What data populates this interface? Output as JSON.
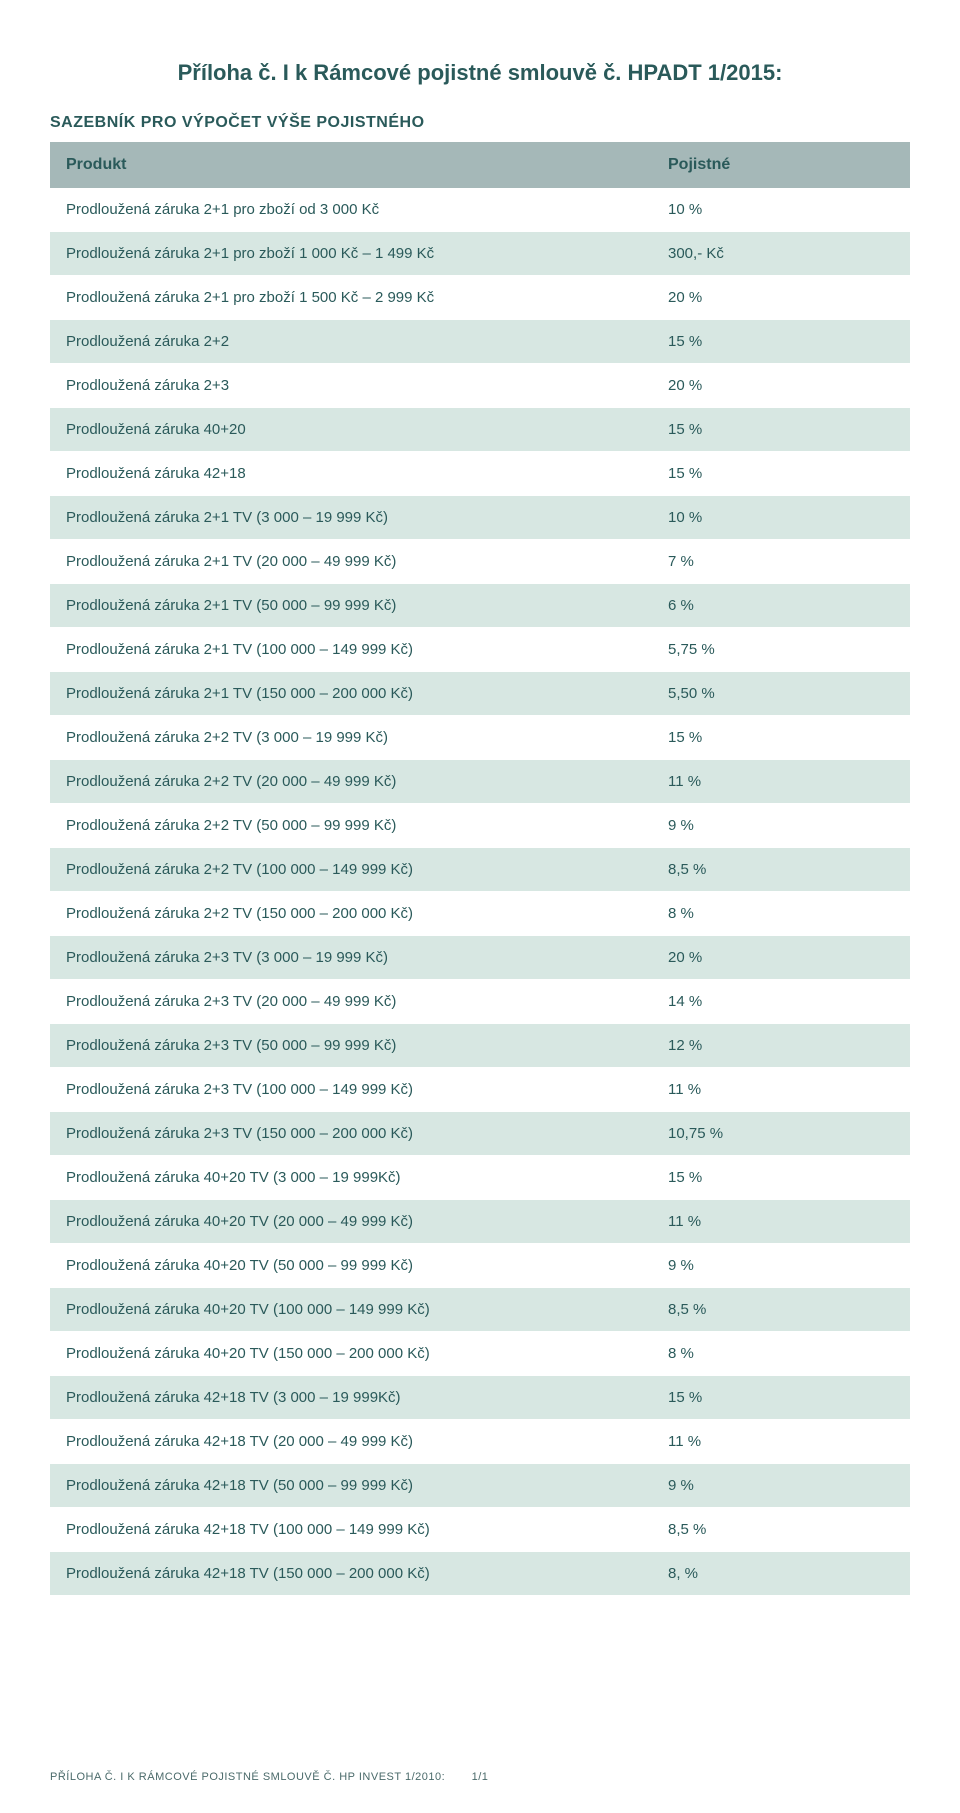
{
  "title": "Příloha č. I k Rámcové pojistné smlouvě č. HPADT 1/2015:",
  "subtitle": "SAZEBNÍK PRO VÝPOČET VÝŠE POJISTNÉHO",
  "columns": {
    "product": "Produkt",
    "value": "Pojistné"
  },
  "colors": {
    "header_bg": "#a5b8b8",
    "row_tint": "#d7e7e2",
    "row_white": "#ffffff",
    "text": "#2a5a5a"
  },
  "rows": [
    {
      "product": "Prodloužená záruka 2+1 pro zboží od 3 000 Kč",
      "value": "10 %"
    },
    {
      "product": "Prodloužená záruka 2+1 pro zboží 1 000 Kč – 1 499 Kč",
      "value": "300,- Kč"
    },
    {
      "product": "Prodloužená záruka 2+1 pro zboží 1 500 Kč – 2 999 Kč",
      "value": "20 %"
    },
    {
      "product": "Prodloužená záruka 2+2",
      "value": "15 %"
    },
    {
      "product": "Prodloužená záruka 2+3",
      "value": "20 %"
    },
    {
      "product": "Prodloužená záruka 40+20",
      "value": "15 %"
    },
    {
      "product": "Prodloužená záruka 42+18",
      "value": "15 %"
    },
    {
      "product": "Prodloužená záruka 2+1 TV (3 000 – 19 999 Kč)",
      "value": "10 %"
    },
    {
      "product": "Prodloužená záruka 2+1 TV (20 000 – 49 999 Kč)",
      "value": "7 %"
    },
    {
      "product": "Prodloužená záruka 2+1 TV (50 000 – 99 999 Kč)",
      "value": "6 %"
    },
    {
      "product": "Prodloužená záruka 2+1 TV (100 000 – 149 999 Kč)",
      "value": "5,75 %"
    },
    {
      "product": "Prodloužená záruka 2+1 TV (150 000 – 200 000 Kč)",
      "value": "5,50 %"
    },
    {
      "product": "Prodloužená záruka 2+2 TV (3 000 – 19 999 Kč)",
      "value": "15 %"
    },
    {
      "product": "Prodloužená záruka 2+2 TV (20 000 – 49 999 Kč)",
      "value": "11 %"
    },
    {
      "product": "Prodloužená záruka 2+2 TV (50 000 –  99 999 Kč)",
      "value": "9 %"
    },
    {
      "product": "Prodloužená záruka 2+2 TV (100 000 –  149 999 Kč)",
      "value": "8,5 %"
    },
    {
      "product": "Prodloužená záruka 2+2 TV (150 000 –  200 000 Kč)",
      "value": "8 %"
    },
    {
      "product": "Prodloužená záruka 2+3 TV (3 000 –  19 999 Kč)",
      "value": "20 %"
    },
    {
      "product": "Prodloužená záruka 2+3 TV (20 000 –  49 999 Kč)",
      "value": "14 %"
    },
    {
      "product": "Prodloužená záruka 2+3 TV (50 000 –  99 999 Kč)",
      "value": "12 %"
    },
    {
      "product": "Prodloužená záruka 2+3 TV (100 000 –  149 999 Kč)",
      "value": "11 %"
    },
    {
      "product": "Prodloužená záruka 2+3 TV (150 000 – 200 000 Kč)",
      "value": "10,75 %"
    },
    {
      "product": "Prodloužená záruka 40+20 TV (3 000 –  19 999Kč)",
      "value": "15 %"
    },
    {
      "product": "Prodloužená záruka 40+20 TV (20 000 –  49 999 Kč)",
      "value": "11 %"
    },
    {
      "product": "Prodloužená záruka 40+20 TV (50 000 –  99 999 Kč)",
      "value": "9 %"
    },
    {
      "product": "Prodloužená záruka 40+20 TV (100 000 – 149 999 Kč)",
      "value": "8,5 %"
    },
    {
      "product": "Prodloužená záruka 40+20 TV (150 000 – 200 000 Kč)",
      "value": "8 %"
    },
    {
      "product": "Prodloužená záruka 42+18 TV (3 000 –  19 999Kč)",
      "value": "15 %"
    },
    {
      "product": "Prodloužená záruka 42+18 TV (20 000 –  49 999 Kč)",
      "value": "11 %"
    },
    {
      "product": "Prodloužená záruka 42+18 TV (50 000 –  99 999 Kč)",
      "value": "9 %"
    },
    {
      "product": "Prodloužená záruka 42+18 TV (100 000 – 149 999 Kč)",
      "value": "8,5 %"
    },
    {
      "product": "Prodloužená záruka 42+18 TV (150 000 – 200 000 Kč)",
      "value": "8, %"
    }
  ],
  "footer": {
    "left": "PŘÍLOHA Č. I K RÁMCOVÉ POJISTNÉ SMLOUVĚ Č. HP INVEST 1/2010:",
    "page": "1/1"
  }
}
